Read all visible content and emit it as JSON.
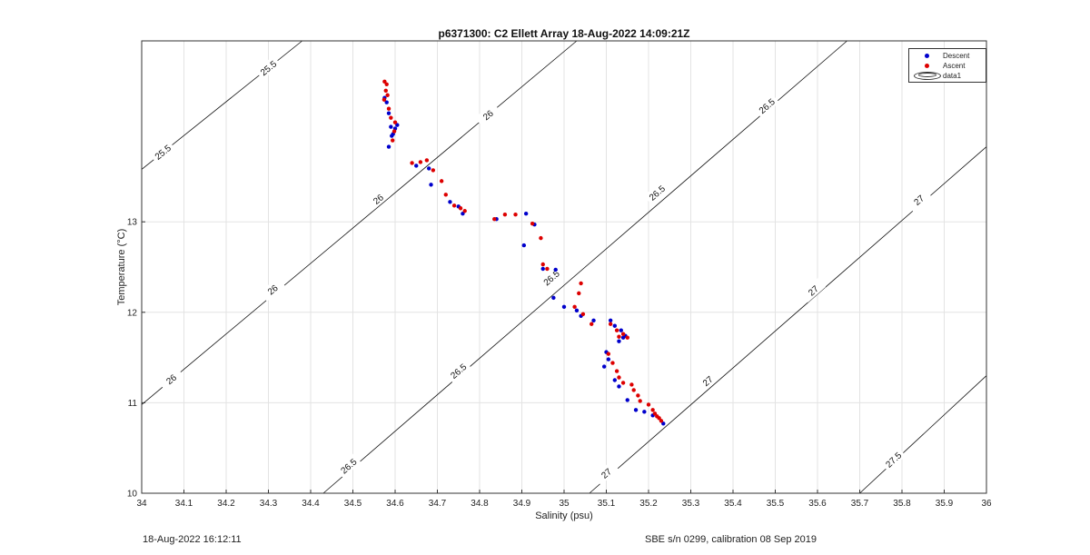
{
  "footer": {
    "timestamp": "18-Aug-2022 16:12:11",
    "calibration": "SBE s/n 0299, calibration 08 Sep 2019"
  },
  "legend": {
    "descent": "Descent",
    "ascent": "Ascent",
    "data1": "data1"
  },
  "colors": {
    "descent": "#0000cc",
    "ascent": "#dd0000",
    "contour": "#111111",
    "grid": "#e3e3e3"
  },
  "chart_data": {
    "type": "scatter",
    "title": "p6371300: C2 Ellett Array 18-Aug-2022 14:09:21Z",
    "xlabel": "Salinity (psu)",
    "ylabel": "Temperature (°C)",
    "xlim": [
      34,
      36
    ],
    "ylim": [
      10,
      15
    ],
    "xticks": [
      "34",
      "34.1",
      "34.2",
      "34.3",
      "34.4",
      "34.5",
      "34.6",
      "34.7",
      "34.8",
      "34.9",
      "35",
      "35.1",
      "35.2",
      "35.3",
      "35.4",
      "35.5",
      "35.6",
      "35.7",
      "35.8",
      "35.9",
      "36"
    ],
    "yticks": [
      "10",
      "11",
      "12",
      "13"
    ],
    "grid": true,
    "legend_position": "top-right",
    "contours": [
      {
        "label": "25.5",
        "points": [
          [
            34.0,
            13.58
          ],
          [
            34.38,
            15.0
          ]
        ],
        "labels_at": [
          [
            34.05,
            13.77
          ],
          [
            34.3,
            14.7
          ]
        ]
      },
      {
        "label": "26",
        "points": [
          [
            34.0,
            10.98
          ],
          [
            35.03,
            15.0
          ]
        ],
        "labels_at": [
          [
            34.07,
            11.26
          ],
          [
            34.31,
            12.25
          ],
          [
            34.56,
            13.25
          ],
          [
            34.82,
            14.18
          ]
        ]
      },
      {
        "label": "26.5",
        "points": [
          [
            34.43,
            10.0
          ],
          [
            35.67,
            15.0
          ]
        ],
        "labels_at": [
          [
            34.49,
            10.3
          ],
          [
            34.75,
            11.35
          ],
          [
            34.97,
            12.38
          ],
          [
            35.22,
            13.32
          ],
          [
            35.48,
            14.28
          ]
        ]
      },
      {
        "label": "27",
        "points": [
          [
            35.06,
            10.0
          ],
          [
            36.0,
            13.83
          ]
        ],
        "labels_at": [
          [
            35.1,
            10.22
          ],
          [
            35.34,
            11.24
          ],
          [
            35.59,
            12.24
          ],
          [
            35.84,
            13.24
          ]
        ]
      },
      {
        "label": "27.5",
        "points": [
          [
            35.7,
            10.0
          ],
          [
            36.0,
            11.3
          ]
        ],
        "labels_at": [
          [
            35.78,
            10.37
          ]
        ]
      }
    ],
    "series": [
      {
        "name": "Descent",
        "x": [
          34.575,
          34.58,
          34.585,
          34.59,
          34.6,
          34.605,
          34.595,
          34.592,
          34.585,
          34.65,
          34.68,
          34.685,
          34.73,
          34.75,
          34.76,
          34.84,
          34.91,
          34.93,
          34.905,
          34.95,
          34.98,
          34.975,
          35.0,
          35.03,
          35.04,
          35.07,
          35.11,
          35.12,
          35.135,
          35.14,
          35.145,
          35.13,
          35.1,
          35.095,
          35.105,
          35.12,
          35.13,
          35.15,
          35.17,
          35.19,
          35.21,
          35.235
        ],
        "y": [
          14.37,
          14.32,
          14.2,
          14.05,
          14.03,
          14.07,
          13.97,
          13.95,
          13.83,
          13.62,
          13.59,
          13.41,
          13.22,
          13.17,
          13.09,
          13.03,
          13.09,
          12.97,
          12.74,
          12.48,
          12.47,
          12.16,
          12.06,
          12.02,
          11.96,
          11.91,
          11.91,
          11.85,
          11.8,
          11.72,
          11.74,
          11.68,
          11.56,
          11.4,
          11.48,
          11.25,
          11.18,
          11.03,
          10.92,
          10.9,
          10.86,
          10.77
        ]
      },
      {
        "name": "Ascent",
        "x": [
          34.575,
          34.58,
          34.578,
          34.582,
          34.574,
          34.585,
          34.59,
          34.6,
          34.598,
          34.594,
          34.64,
          34.66,
          34.675,
          34.69,
          34.71,
          34.72,
          34.74,
          34.755,
          34.765,
          34.835,
          34.86,
          34.885,
          34.925,
          34.945,
          34.95,
          34.96,
          35.04,
          35.035,
          35.025,
          35.045,
          35.065,
          35.11,
          35.125,
          35.13,
          35.14,
          35.15,
          35.105,
          35.115,
          35.125,
          35.13,
          35.14,
          35.16,
          35.165,
          35.175,
          35.18,
          35.2,
          35.21,
          35.215,
          35.22,
          35.225,
          35.23
        ],
        "y": [
          14.55,
          14.52,
          14.45,
          14.4,
          14.35,
          14.25,
          14.15,
          14.1,
          14.0,
          13.9,
          13.65,
          13.66,
          13.68,
          13.57,
          13.45,
          13.3,
          13.18,
          13.15,
          13.12,
          13.03,
          13.08,
          13.08,
          12.98,
          12.82,
          12.53,
          12.48,
          12.32,
          12.21,
          12.06,
          11.98,
          11.87,
          11.87,
          11.8,
          11.73,
          11.76,
          11.72,
          11.54,
          11.44,
          11.35,
          11.28,
          11.22,
          11.2,
          11.14,
          11.08,
          11.02,
          10.98,
          10.92,
          10.88,
          10.85,
          10.83,
          10.8
        ]
      }
    ]
  }
}
